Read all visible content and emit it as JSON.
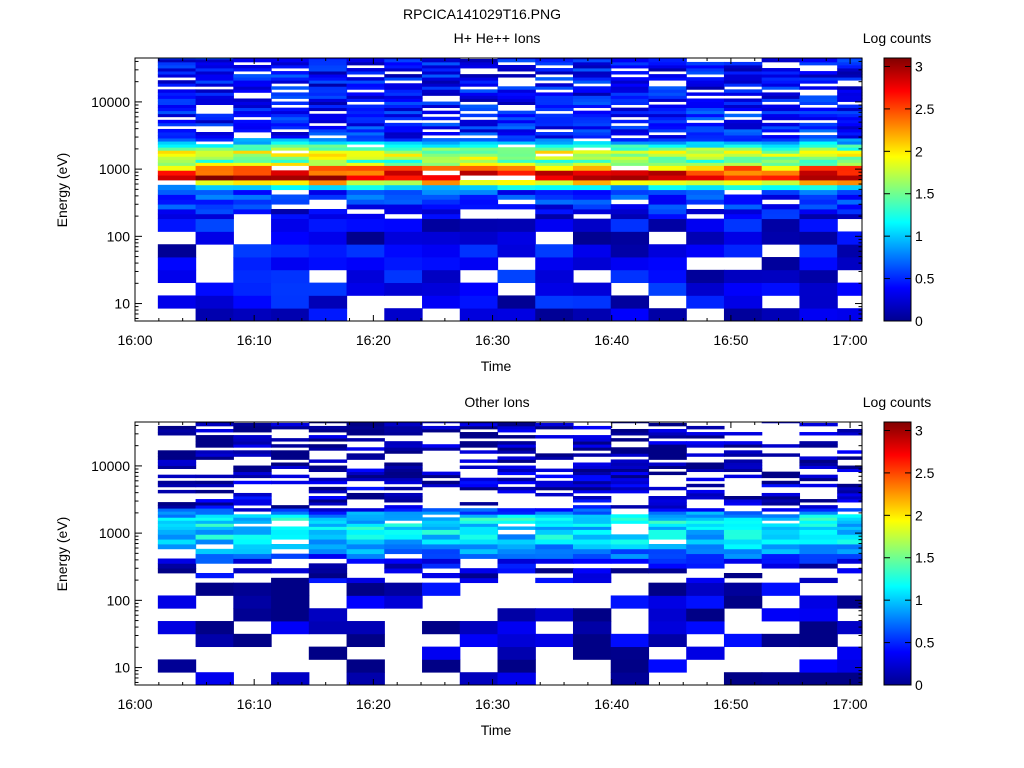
{
  "figure_title": "RPCICA141029T16.PNG",
  "chart_data": [
    {
      "type": "heatmap",
      "title": "H+ He++ Ions",
      "xlabel": "Time",
      "ylabel": "Energy (eV)",
      "y_scale": "log",
      "y_ticks": [
        10,
        100,
        1000,
        10000
      ],
      "y_tick_labels": [
        "10",
        "100",
        "1000",
        "10000"
      ],
      "x_ticks": [
        "16:00",
        "16:10",
        "16:20",
        "16:30",
        "16:40",
        "16:50",
        "17:00"
      ],
      "x_range": [
        "16:00",
        "17:01"
      ],
      "y_range": [
        5.5,
        45000
      ],
      "colorbar": {
        "label": "Log counts",
        "range": [
          0,
          3.1
        ],
        "ticks": [
          "0",
          "0.5",
          "1",
          "1.5",
          "2",
          "2.5",
          "3"
        ]
      },
      "colormap": "jet",
      "time_bins": [
        "16:03:30",
        "16:06:40",
        "16:09:50",
        "16:13:00",
        "16:16:10",
        "16:19:20",
        "16:22:30",
        "16:25:40",
        "16:28:50",
        "16:32:00",
        "16:35:10",
        "16:38:20",
        "16:41:30",
        "16:44:40",
        "16:47:50",
        "16:51:00",
        "16:54:10",
        "16:57:20",
        "17:00:30"
      ],
      "energy_band_means_log_counts": [
        {
          "energy_eV": 10,
          "value": 0.3
        },
        {
          "energy_eV": 40,
          "value": 0.35
        },
        {
          "energy_eV": 80,
          "value": 0.3
        },
        {
          "energy_eV": 200,
          "value": 0.35
        },
        {
          "energy_eV": 500,
          "value": 0.6
        },
        {
          "energy_eV": 750,
          "value": 2.9
        },
        {
          "energy_eV": 1000,
          "value": 2.4
        },
        {
          "energy_eV": 1300,
          "value": 1.4
        },
        {
          "energy_eV": 1700,
          "value": 1.9
        },
        {
          "energy_eV": 3000,
          "value": 0.5
        },
        {
          "energy_eV": 10000,
          "value": 0.4
        },
        {
          "energy_eV": 30000,
          "value": 0.4
        }
      ]
    },
    {
      "type": "heatmap",
      "title": "Other Ions",
      "xlabel": "Time",
      "ylabel": "Energy (eV)",
      "y_scale": "log",
      "y_ticks": [
        10,
        100,
        1000,
        10000
      ],
      "y_tick_labels": [
        "10",
        "100",
        "1000",
        "10000"
      ],
      "x_ticks": [
        "16:00",
        "16:10",
        "16:20",
        "16:30",
        "16:40",
        "16:50",
        "17:00"
      ],
      "x_range": [
        "16:00",
        "17:01"
      ],
      "y_range": [
        5.5,
        45000
      ],
      "colorbar": {
        "label": "Log counts",
        "range": [
          0,
          3.1
        ],
        "ticks": [
          "0",
          "0.5",
          "1",
          "1.5",
          "2",
          "2.5",
          "3"
        ]
      },
      "colormap": "jet",
      "time_bins": [
        "16:03:30",
        "16:06:40",
        "16:09:50",
        "16:13:00",
        "16:16:10",
        "16:19:20",
        "16:22:30",
        "16:25:40",
        "16:28:50",
        "16:32:00",
        "16:35:10",
        "16:38:20",
        "16:41:30",
        "16:44:40",
        "16:47:50",
        "16:51:00",
        "16:54:10",
        "16:57:20",
        "17:00:30"
      ],
      "energy_band_means_log_counts": [
        {
          "energy_eV": 10,
          "value": 0.15
        },
        {
          "energy_eV": 50,
          "value": 0.2
        },
        {
          "energy_eV": 150,
          "value": 0.2
        },
        {
          "energy_eV": 300,
          "value": 0.2
        },
        {
          "energy_eV": 700,
          "value": 1.0
        },
        {
          "energy_eV": 1700,
          "value": 1.1
        },
        {
          "energy_eV": 2500,
          "value": 0.2
        },
        {
          "energy_eV": 20000,
          "value": 0.1
        }
      ]
    }
  ]
}
